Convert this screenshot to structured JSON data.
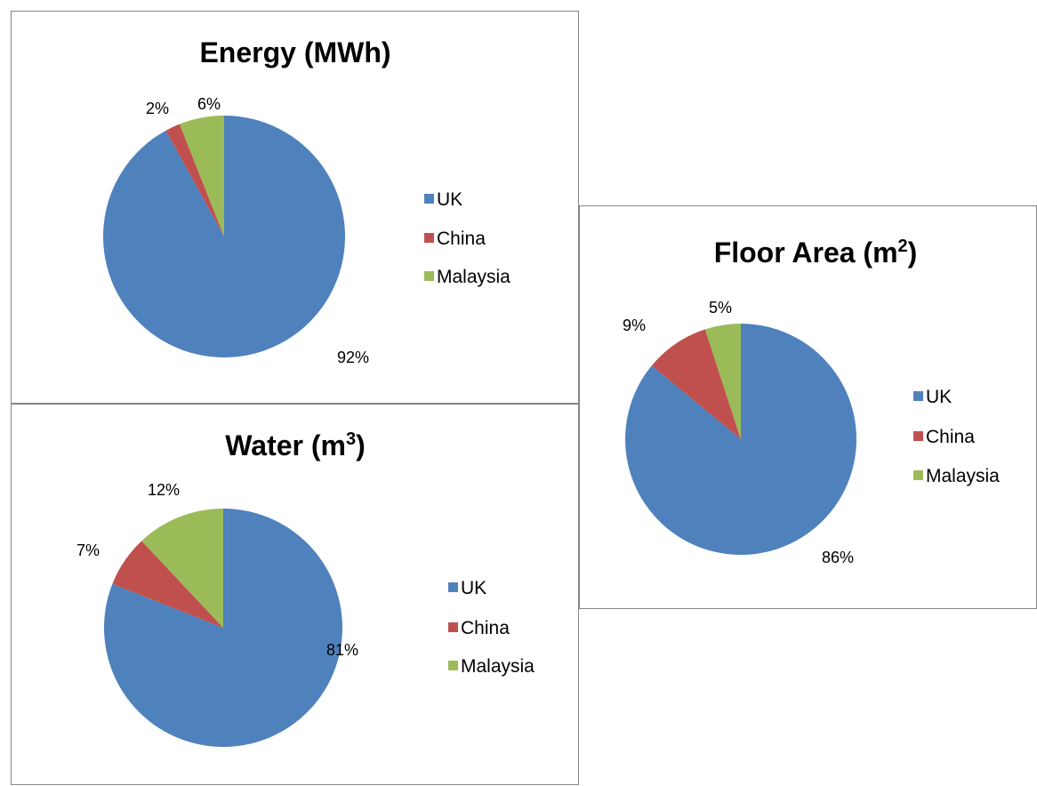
{
  "colors": {
    "UK": "#4F81BD",
    "China": "#C0504D",
    "Malaysia": "#9BBB59"
  },
  "chart_data": [
    {
      "type": "pie",
      "title": "Energy (MWh)",
      "title_sup": "",
      "title_suffix": "",
      "categories": [
        "UK",
        "China",
        "Malaysia"
      ],
      "values": [
        92,
        2,
        6
      ],
      "value_labels": [
        "92%",
        "2%",
        "6%"
      ],
      "legend": "right"
    },
    {
      "type": "pie",
      "title": "Water (m",
      "title_sup": "3",
      "title_suffix": ")",
      "categories": [
        "UK",
        "China",
        "Malaysia"
      ],
      "values": [
        81,
        7,
        12
      ],
      "value_labels": [
        "81%",
        "7%",
        "12%"
      ],
      "legend": "right"
    },
    {
      "type": "pie",
      "title": "Floor Area (m",
      "title_sup": "2",
      "title_suffix": ")",
      "categories": [
        "UK",
        "China",
        "Malaysia"
      ],
      "values": [
        86,
        9,
        5
      ],
      "value_labels": [
        "86%",
        "9%",
        "5%"
      ],
      "legend": "right"
    }
  ]
}
